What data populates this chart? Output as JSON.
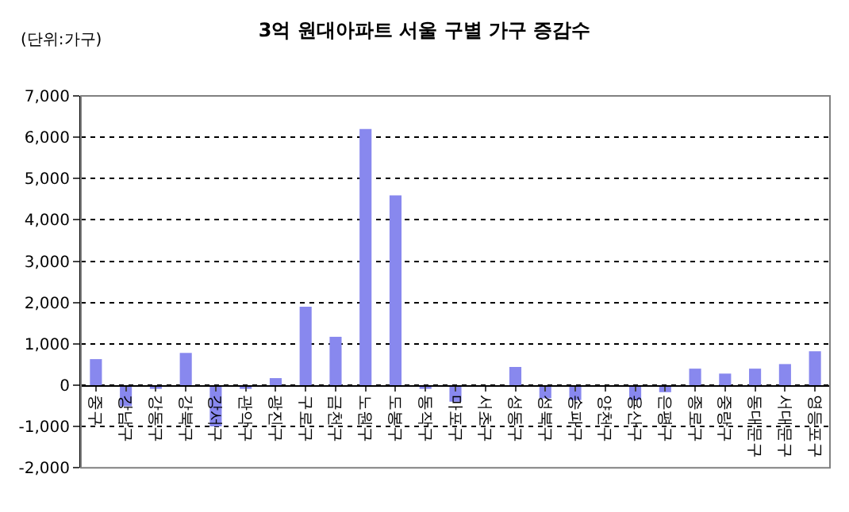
{
  "chart_data": {
    "type": "bar",
    "title": "3억 원대아파트 서울 구별 가구 증감수",
    "annotations": [
      "(단위:가구)"
    ],
    "categories": [
      "중구",
      "강남구",
      "강동구",
      "강북구",
      "강서구",
      "관악구",
      "광진구",
      "구로구",
      "금천구",
      "노원구",
      "도봉구",
      "동작구",
      "마포구",
      "서초구",
      "성동구",
      "성북구",
      "송파구",
      "양천구",
      "용산구",
      "은평구",
      "종로구",
      "중랑구",
      "동대문구",
      "서대문구",
      "영등포구"
    ],
    "values": [
      630,
      -510,
      -90,
      780,
      -1000,
      -90,
      170,
      1900,
      1170,
      6200,
      4590,
      -90,
      -400,
      0,
      440,
      -320,
      -360,
      0,
      -360,
      -170,
      400,
      280,
      400,
      510,
      820
    ],
    "color": "#8888ee",
    "ylim": [
      -2000,
      7000
    ],
    "yticks": [
      {
        "value": -2000,
        "label": "-2,000"
      },
      {
        "value": -1000,
        "label": "-1,000"
      },
      0,
      {
        "value": 1000,
        "label": "1,000"
      },
      {
        "value": 2000,
        "label": "2,000"
      },
      {
        "value": 3000,
        "label": "3,000"
      },
      {
        "value": 4000,
        "label": "4,000"
      },
      {
        "value": 5000,
        "label": "5,000"
      },
      {
        "value": 6000,
        "label": "6,000"
      },
      {
        "value": 7000,
        "label": "7,000"
      }
    ],
    "grid": "y"
  }
}
